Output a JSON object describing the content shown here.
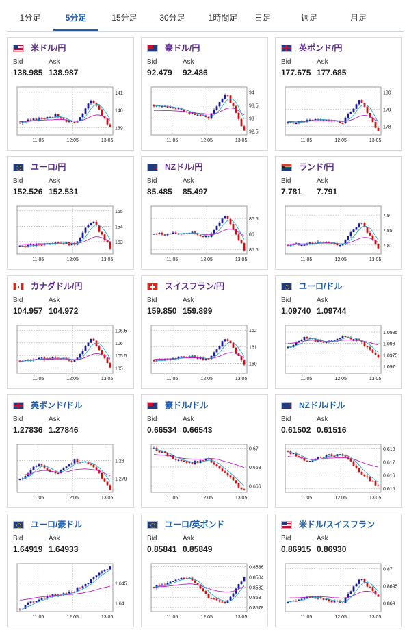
{
  "tabs": [
    {
      "label": "1分足",
      "active": false
    },
    {
      "label": "5分足",
      "active": true
    },
    {
      "label": "15分足",
      "active": false
    },
    {
      "label": "30分足",
      "active": false
    },
    {
      "label": "1時間足",
      "active": false
    },
    {
      "label": "日足",
      "active": false
    },
    {
      "label": "週足",
      "active": false
    },
    {
      "label": "月足",
      "active": false
    }
  ],
  "labels": {
    "bid": "Bid",
    "ask": "Ask"
  },
  "colors": {
    "up": "#1a1aa0",
    "down": "#d01010",
    "ma_short": "#2aa7c9",
    "ma_long": "#c21fc2",
    "grid": "#999999",
    "tab_active": "#1d5fb0",
    "title_jpy": "#5b2a8c",
    "title_usd": "#1d5fb0"
  },
  "pairs": [
    {
      "id": "usdjpy",
      "title": "米ドル/円",
      "flag": "us",
      "title_color": "jpy",
      "bid": "138.985",
      "ask": "138.987",
      "chart": {
        "yticks": [
          "141",
          "140",
          "139"
        ],
        "ymin": 138.6,
        "ymax": 141.3,
        "xticks": [
          "11:05",
          "12:05",
          "13:05"
        ],
        "shape": [
          139.3,
          139.5,
          139.7,
          139.2,
          140.6,
          139.0
        ],
        "ma_long": 139.4
      }
    },
    {
      "id": "audjpy",
      "title": "豪ドル/円",
      "flag": "au",
      "title_color": "jpy",
      "bid": "92.479",
      "ask": "92.486",
      "chart": {
        "yticks": [
          "94",
          "93.5",
          "93",
          "92.5"
        ],
        "ymin": 92.35,
        "ymax": 94.2,
        "xticks": [
          "11:05",
          "12:05",
          "13:05"
        ],
        "shape": [
          93.5,
          93.4,
          93.2,
          93.0,
          94.0,
          92.5
        ],
        "ma_long": 93.2
      }
    },
    {
      "id": "gbpjpy",
      "title": "英ポンド/円",
      "flag": "uk",
      "title_color": "jpy",
      "bid": "177.675",
      "ask": "177.685",
      "chart": {
        "yticks": [
          "180",
          "179",
          "178"
        ],
        "ymin": 177.5,
        "ymax": 180.3,
        "xticks": [
          "11:05",
          "12:05",
          "13:05"
        ],
        "shape": [
          178.2,
          178.3,
          178.4,
          178.2,
          179.6,
          177.7
        ],
        "ma_long": 178.3
      }
    },
    {
      "id": "eurjpy",
      "title": "ユーロ/円",
      "flag": "eu",
      "title_color": "jpy",
      "bid": "152.526",
      "ask": "152.531",
      "chart": {
        "yticks": [
          "155",
          "154",
          "153"
        ],
        "ymin": 152.2,
        "ymax": 155.3,
        "xticks": [
          "11:05",
          "12:05",
          "13:05"
        ],
        "shape": [
          152.7,
          152.8,
          153.0,
          152.8,
          154.4,
          152.6
        ],
        "ma_long": 152.9
      }
    },
    {
      "id": "nzdjpy",
      "title": "NZドル/円",
      "flag": "nz",
      "title_color": "jpy",
      "bid": "85.485",
      "ask": "85.497",
      "chart": {
        "yticks": [
          "86.5",
          "86",
          "85.5"
        ],
        "ymin": 85.35,
        "ymax": 86.9,
        "xticks": [
          "11:05",
          "12:05",
          "13:05"
        ],
        "shape": [
          86.0,
          86.0,
          86.05,
          85.9,
          86.6,
          85.5
        ],
        "ma_long": 86.0
      }
    },
    {
      "id": "zarjpy",
      "title": "ランド/円",
      "flag": "za",
      "title_color": "jpy",
      "bid": "7.781",
      "ask": "7.791",
      "chart": {
        "yticks": [
          "7.9",
          "7.85",
          "7.8"
        ],
        "ymin": 7.77,
        "ymax": 7.93,
        "xticks": [
          "11:05",
          "12:05",
          "13:05"
        ],
        "shape": [
          7.8,
          7.805,
          7.81,
          7.8,
          7.88,
          7.785
        ],
        "ma_long": 7.805
      }
    },
    {
      "id": "cadjpy",
      "title": "カナダドル/円",
      "flag": "ca",
      "title_color": "jpy",
      "bid": "104.957",
      "ask": "104.972",
      "chart": {
        "yticks": [
          "106.5",
          "106",
          "105.5",
          "105"
        ],
        "ymin": 104.8,
        "ymax": 106.7,
        "xticks": [
          "11:05",
          "12:05",
          "13:05"
        ],
        "shape": [
          105.3,
          105.35,
          105.4,
          105.3,
          106.2,
          105.0
        ],
        "ma_long": 105.35
      }
    },
    {
      "id": "chfjpy",
      "title": "スイスフラン/円",
      "flag": "ch",
      "title_color": "jpy",
      "bid": "159.850",
      "ask": "159.899",
      "chart": {
        "yticks": [
          "162",
          "161",
          "160"
        ],
        "ymin": 159.4,
        "ymax": 162.3,
        "xticks": [
          "11:05",
          "12:05",
          "13:05"
        ],
        "shape": [
          160.2,
          160.3,
          160.4,
          160.2,
          161.6,
          159.9
        ],
        "ma_long": 160.3
      }
    },
    {
      "id": "eurusd",
      "title": "ユーロ/ドル",
      "flag": "eu",
      "title_color": "usd",
      "bid": "1.09740",
      "ask": "1.09744",
      "chart": {
        "yticks": [
          "1.0985",
          "1.098",
          "1.0975",
          "1.097"
        ],
        "ymin": 1.0967,
        "ymax": 1.0988,
        "xticks": [
          "11:05",
          "12:05",
          "13:05"
        ],
        "shape": [
          1.0978,
          1.0983,
          1.098,
          1.0983,
          1.0981,
          1.0974
        ],
        "ma_long": 1.0981
      }
    },
    {
      "id": "gbpusd",
      "title": "英ポンド/ドル",
      "flag": "uk",
      "title_color": "usd",
      "bid": "1.27836",
      "ask": "1.27846",
      "chart": {
        "yticks": [
          "1.28",
          "1.279"
        ],
        "ymin": 1.2782,
        "ymax": 1.2809,
        "xticks": [
          "11:05",
          "12:05",
          "13:05"
        ],
        "shape": [
          1.2789,
          1.2798,
          1.2792,
          1.28,
          1.2798,
          1.2784
        ],
        "ma_long": 1.2793
      }
    },
    {
      "id": "audusd",
      "title": "豪ドル/ドル",
      "flag": "au",
      "title_color": "usd",
      "bid": "0.66534",
      "ask": "0.66543",
      "chart": {
        "yticks": [
          "0.67",
          "0.668",
          "0.666"
        ],
        "ymin": 0.6653,
        "ymax": 0.6704,
        "xticks": [
          "11:05",
          "12:05",
          "13:05"
        ],
        "shape": [
          0.67,
          0.669,
          0.6684,
          0.6688,
          0.6672,
          0.6654
        ],
        "ma_long": 0.669
      }
    },
    {
      "id": "nzdusd",
      "title": "NZドル/ドル",
      "flag": "nz",
      "title_color": "usd",
      "bid": "0.61502",
      "ask": "0.61516",
      "chart": {
        "yticks": [
          "0.618",
          "0.617",
          "0.616",
          "0.615"
        ],
        "ymin": 0.6147,
        "ymax": 0.6183,
        "xticks": [
          "11:05",
          "12:05",
          "13:05"
        ],
        "shape": [
          0.6178,
          0.617,
          0.6174,
          0.6176,
          0.6162,
          0.6151
        ],
        "ma_long": 0.6172
      }
    },
    {
      "id": "euraud",
      "title": "ユーロ/豪ドル",
      "flag": "eu",
      "title_color": "usd",
      "bid": "1.64919",
      "ask": "1.64933",
      "chart": {
        "yticks": [
          "1.645",
          "1.64"
        ],
        "ymin": 1.6378,
        "ymax": 1.65,
        "xticks": [
          "11:05",
          "12:05",
          "13:05"
        ],
        "shape": [
          1.6385,
          1.641,
          1.642,
          1.643,
          1.646,
          1.6492
        ],
        "ma_long": 1.642
      }
    },
    {
      "id": "eurgbp",
      "title": "ユーロ/英ポンド",
      "flag": "eu",
      "title_color": "usd",
      "bid": "0.85841",
      "ask": "0.85849",
      "chart": {
        "yticks": [
          "0.8586",
          "0.8584",
          "0.8582",
          "0.858",
          "0.8578"
        ],
        "ymin": 0.85772,
        "ymax": 0.85866,
        "xticks": [
          "11:05",
          "12:05",
          "13:05"
        ],
        "shape": [
          0.8582,
          0.8583,
          0.8584,
          0.858,
          0.8579,
          0.8584
        ],
        "ma_long": 0.8582
      }
    },
    {
      "id": "usdchf",
      "title": "米ドル/スイスフラン",
      "flag": "us",
      "title_color": "usd",
      "bid": "0.86915",
      "ask": "0.86930",
      "chart": {
        "yticks": [
          "0.87",
          "0.8695",
          "0.869"
        ],
        "ymin": 0.86875,
        "ymax": 0.87015,
        "xticks": [
          "11:05",
          "12:05",
          "13:05"
        ],
        "shape": [
          0.869,
          0.8692,
          0.8691,
          0.869,
          0.8697,
          0.8692
        ],
        "ma_long": 0.8692
      }
    }
  ]
}
